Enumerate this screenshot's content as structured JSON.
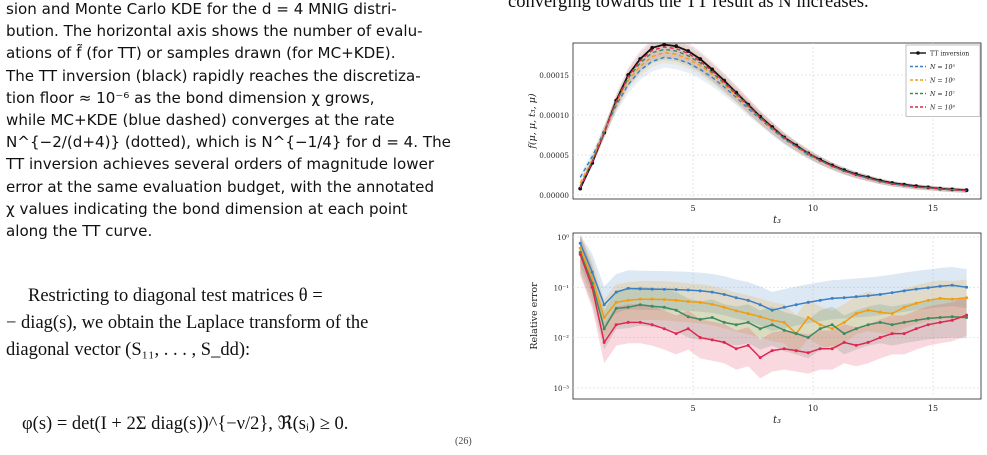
{
  "caption_lines": [
    "sion and Monte Carlo KDE for the d = 4 MNIG distri-",
    "bution. The horizontal axis shows the number of evalu-",
    "ations of f̃ (for TT) or samples drawn (for MC+KDE).",
    "The TT inversion (black) rapidly reaches the discretiza-",
    "tion floor ≈ 10⁻⁶ as the bond dimension χ grows,",
    "while MC+KDE (blue dashed) converges at the rate",
    "N^{−2/(d+4)} (dotted), which is N^{−1/4} for d = 4. The",
    "TT inversion achieves several orders of magnitude lower",
    "error at the same evaluation budget, with the annotated",
    "χ values indicating the bond dimension at each point",
    "along the TT curve."
  ],
  "body_lines": [
    "Restricting to diagonal test matrices θ =",
    "− diag(s), we obtain the Laplace transform of the",
    "diagonal vector (S₁₁, . . . , S_dd):"
  ],
  "equation": "φ(s) = det(I + 2Σ diag(s))^{−ν/2},    ℜ(sᵢ) ≥ 0.",
  "equation_number": "(26)",
  "right_top_text": "converging towards the TT result as N increases.",
  "colors": {
    "tt": "#111111",
    "n5": "#3b7fc4",
    "n6": "#f39c12",
    "n7": "#3c8a62",
    "n8": "#e0264f",
    "grid": "#dddddd"
  },
  "chart_data": [
    {
      "type": "line",
      "xlabel": "t₃",
      "ylabel": "f(μ, μ, t₃, μ)",
      "xlim": [
        0,
        17
      ],
      "ylim": [
        -5e-06,
        0.00019
      ],
      "x_ticks": [
        "5",
        "10",
        "15"
      ],
      "y_ticks": [
        "0.00000",
        "0.00005",
        "0.00010",
        "0.00015"
      ],
      "grid": true,
      "legend_position": "top-right",
      "x": [
        0.3,
        0.8,
        1.3,
        1.8,
        2.3,
        2.8,
        3.3,
        3.8,
        4.3,
        4.8,
        5.3,
        5.8,
        6.3,
        6.8,
        7.3,
        7.8,
        8.3,
        8.8,
        9.3,
        9.8,
        10.3,
        10.8,
        11.3,
        11.8,
        12.3,
        12.8,
        13.3,
        13.8,
        14.3,
        14.8,
        15.3,
        15.8,
        16.4
      ],
      "series": [
        {
          "name": "TT inversion",
          "style": "solid-marker",
          "values": [
            8e-06,
            4e-05,
            7.8e-05,
            0.000118,
            0.00015,
            0.00017,
            0.000184,
            0.000188,
            0.000186,
            0.00018,
            0.00017,
            0.000157,
            0.000143,
            0.000128,
            0.000113,
            9.8e-05,
            8.5e-05,
            7.2e-05,
            6.2e-05,
            5.2e-05,
            4.4e-05,
            3.7e-05,
            3.1e-05,
            2.6e-05,
            2.2e-05,
            1.8e-05,
            1.5e-05,
            1.3e-05,
            1.1e-05,
            9.5e-06,
            8e-06,
            7e-06,
            6e-06
          ]
        },
        {
          "name": "N = 10⁵",
          "style": "dashed",
          "values": [
            2.2e-05,
            4.8e-05,
            8e-05,
            0.000112,
            0.000138,
            0.000156,
            0.000167,
            0.000172,
            0.00017,
            0.000165,
            0.000157,
            0.000147,
            0.000135,
            0.000122,
            0.000108,
            9.5e-05,
            8.2e-05,
            7e-05,
            6e-05,
            5e-05,
            4.3e-05,
            3.6e-05,
            3e-05,
            2.5e-05,
            2.1e-05,
            1.7e-05,
            1.4e-05,
            1.2e-05,
            1e-05,
            9e-06,
            7.5e-06,
            6.5e-06,
            5.5e-06
          ]
        },
        {
          "name": "N = 10⁶",
          "style": "dashed",
          "values": [
            1.5e-05,
            4.4e-05,
            7.9e-05,
            0.000114,
            0.000143,
            0.000161,
            0.000173,
            0.000178,
            0.000176,
            0.00017,
            0.000162,
            0.000151,
            0.000138,
            0.000124,
            0.00011,
            9.6e-05,
            8.3e-05,
            7.1e-05,
            6e-05,
            5.1e-05,
            4.3e-05,
            3.6e-05,
            3e-05,
            2.5e-05,
            2.1e-05,
            1.7e-05,
            1.4e-05,
            1.2e-05,
            1e-05,
            9e-06,
            7.5e-06,
            6.5e-06,
            5.5e-06
          ]
        },
        {
          "name": "N = 10⁷",
          "style": "dashed",
          "values": [
            1.1e-05,
            4.2e-05,
            7.8e-05,
            0.000116,
            0.000146,
            0.000165,
            0.000178,
            0.000182,
            0.00018,
            0.000174,
            0.000165,
            0.000153,
            0.00014,
            0.000126,
            0.000111,
            9.7e-05,
            8.4e-05,
            7.1e-05,
            6.1e-05,
            5.2e-05,
            4.3e-05,
            3.6e-05,
            3e-05,
            2.5e-05,
            2.1e-05,
            1.7e-05,
            1.4e-05,
            1.2e-05,
            1e-05,
            9e-06,
            7.5e-06,
            6.5e-06,
            5.5e-06
          ]
        },
        {
          "name": "N = 10⁸",
          "style": "dashed",
          "values": [
            9e-06,
            4.1e-05,
            7.8e-05,
            0.000117,
            0.000148,
            0.000168,
            0.000181,
            0.000185,
            0.000183,
            0.000177,
            0.000167,
            0.000155,
            0.000141,
            0.000127,
            0.000112,
            9.7e-05,
            8.4e-05,
            7.2e-05,
            6.1e-05,
            5.2e-05,
            4.3e-05,
            3.6e-05,
            3e-05,
            2.5e-05,
            2.1e-05,
            1.7e-05,
            1.4e-05,
            1.2e-05,
            1e-05,
            9e-06,
            7.5e-06,
            6.5e-06,
            5.5e-06
          ]
        }
      ]
    },
    {
      "type": "line",
      "xlabel": "t₃",
      "ylabel": "Relative error",
      "xlim": [
        0,
        17
      ],
      "ylim": [
        0.0006,
        1.2
      ],
      "yscale": "log",
      "x_ticks": [
        "5",
        "10",
        "15"
      ],
      "y_ticks": [
        "10⁰",
        "10⁻¹",
        "10⁻²",
        "10⁻³"
      ],
      "grid": true,
      "x": [
        0.3,
        0.8,
        1.3,
        1.8,
        2.3,
        2.8,
        3.3,
        3.8,
        4.3,
        4.8,
        5.3,
        5.8,
        6.3,
        6.8,
        7.3,
        7.8,
        8.3,
        8.8,
        9.3,
        9.8,
        10.3,
        10.8,
        11.3,
        11.8,
        12.3,
        12.8,
        13.3,
        13.8,
        14.3,
        14.8,
        15.3,
        15.8,
        16.4
      ],
      "series": [
        {
          "name": "N = 10⁵",
          "values": [
            0.75,
            0.2,
            0.045,
            0.08,
            0.095,
            0.093,
            0.092,
            0.091,
            0.09,
            0.088,
            0.085,
            0.08,
            0.072,
            0.062,
            0.055,
            0.045,
            0.035,
            0.04,
            0.045,
            0.05,
            0.055,
            0.06,
            0.062,
            0.065,
            0.068,
            0.072,
            0.078,
            0.085,
            0.092,
            0.098,
            0.105,
            0.11,
            0.1
          ]
        },
        {
          "name": "N = 10⁶",
          "values": [
            0.6,
            0.15,
            0.025,
            0.05,
            0.055,
            0.058,
            0.058,
            0.057,
            0.055,
            0.052,
            0.05,
            0.046,
            0.04,
            0.034,
            0.03,
            0.026,
            0.022,
            0.02,
            0.012,
            0.025,
            0.018,
            0.015,
            0.02,
            0.03,
            0.035,
            0.032,
            0.03,
            0.04,
            0.048,
            0.055,
            0.06,
            0.058,
            0.062
          ]
        },
        {
          "name": "N = 10⁷",
          "values": [
            0.5,
            0.12,
            0.015,
            0.038,
            0.04,
            0.045,
            0.042,
            0.04,
            0.035,
            0.026,
            0.023,
            0.025,
            0.02,
            0.018,
            0.02,
            0.015,
            0.018,
            0.014,
            0.012,
            0.01,
            0.015,
            0.018,
            0.012,
            0.015,
            0.018,
            0.02,
            0.018,
            0.02,
            0.022,
            0.024,
            0.025,
            0.026,
            0.025
          ]
        },
        {
          "name": "N = 10⁸",
          "values": [
            0.45,
            0.1,
            0.008,
            0.018,
            0.02,
            0.02,
            0.018,
            0.015,
            0.012,
            0.015,
            0.01,
            0.009,
            0.008,
            0.006,
            0.007,
            0.004,
            0.0055,
            0.006,
            0.0055,
            0.005,
            0.006,
            0.006,
            0.008,
            0.007,
            0.008,
            0.01,
            0.012,
            0.012,
            0.015,
            0.018,
            0.02,
            0.022,
            0.028
          ]
        }
      ]
    }
  ]
}
